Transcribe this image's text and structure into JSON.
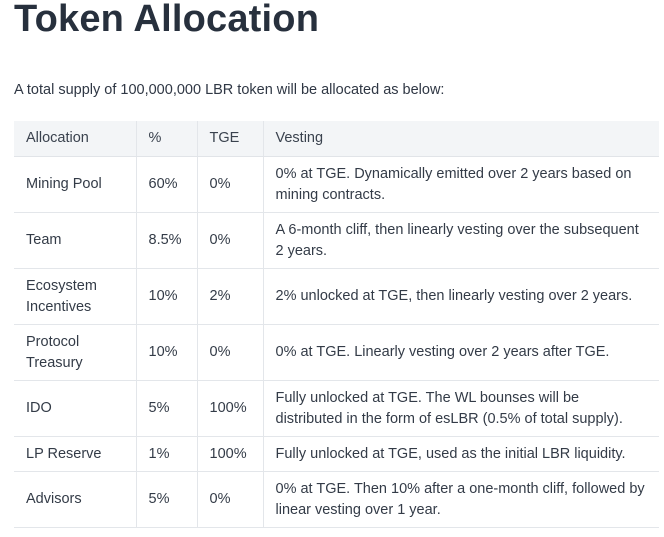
{
  "heading": "Token Allocation",
  "intro": "A total supply of 100,000,000 LBR token will be allocated as below:",
  "table": {
    "headers": [
      "Allocation",
      "%",
      "TGE",
      "Vesting"
    ],
    "rows": [
      {
        "allocation": "Mining Pool",
        "percent": "60%",
        "tge": "0%",
        "vesting": "0% at TGE. Dynamically emitted over 2 years based on mining contracts."
      },
      {
        "allocation": "Team",
        "percent": "8.5%",
        "tge": "0%",
        "vesting": "A 6-month cliff, then linearly vesting over the subsequent 2 years."
      },
      {
        "allocation": "Ecosystem Incentives",
        "percent": "10%",
        "tge": "2%",
        "vesting": "2% unlocked at TGE, then linearly vesting over 2 years."
      },
      {
        "allocation": "Protocol Treasury",
        "percent": "10%",
        "tge": "0%",
        "vesting": "0% at TGE. Linearly vesting over 2 years after TGE."
      },
      {
        "allocation": "IDO",
        "percent": "5%",
        "tge": "100%",
        "vesting": "Fully unlocked at TGE. The WL bounses will be distributed in the form of esLBR (0.5% of total supply)."
      },
      {
        "allocation": "LP Reserve",
        "percent": "1%",
        "tge": "100%",
        "vesting": "Fully unlocked at TGE, used as the initial LBR liquidity."
      },
      {
        "allocation": "Advisors",
        "percent": "5%",
        "tge": "0%",
        "vesting": "0% at TGE. Then 10% after a one-month cliff, followed by linear vesting over 1 year."
      }
    ]
  }
}
